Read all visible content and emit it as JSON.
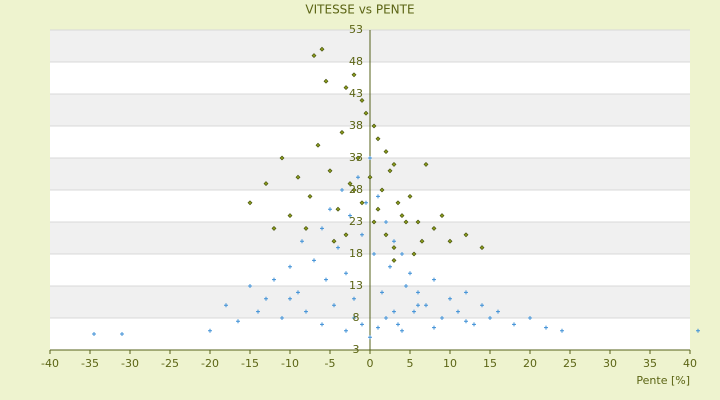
{
  "chart_data": {
    "type": "scatter",
    "title": "VITESSE vs PENTE",
    "x_label": "Pente [%]",
    "xlim": [
      -40,
      40
    ],
    "xticks": [
      -40,
      -35,
      -30,
      -25,
      -20,
      -15,
      -10,
      -5,
      0,
      5,
      10,
      15,
      20,
      25,
      30,
      35,
      40
    ],
    "ylim": [
      3,
      53
    ],
    "yticks": [
      3,
      8,
      13,
      18,
      23,
      28,
      33,
      38,
      43,
      48,
      53
    ],
    "grid": true,
    "series": [
      {
        "color": "#3d8fd6",
        "marker": "plus",
        "x": [
          -34.5,
          -31,
          -20,
          -18,
          -16.5,
          -15,
          -14,
          -13,
          -12,
          -11,
          -10,
          -9,
          -8.5,
          -8,
          -7,
          -6,
          -5.5,
          -5,
          -4.5,
          -4,
          -3.5,
          -3,
          -2.5,
          -2,
          -1.5,
          -1,
          -0.5,
          0,
          0.5,
          1,
          1.5,
          2,
          2.5,
          3,
          3.5,
          4,
          4.5,
          5,
          5.5,
          6,
          7,
          8,
          9,
          10,
          11,
          12,
          13,
          14,
          15,
          16,
          18,
          20,
          22,
          24,
          41,
          -3,
          -1,
          1,
          2,
          0,
          -2,
          3,
          4,
          -6,
          6,
          8,
          -10,
          12
        ],
        "values": [
          5.5,
          5.5,
          6,
          10,
          7.5,
          13,
          9,
          11,
          14,
          8,
          16,
          12,
          20,
          9,
          17,
          22,
          14,
          25,
          10,
          19,
          28,
          15,
          24,
          8,
          30,
          21,
          26,
          33,
          18,
          27,
          12,
          23,
          16,
          20,
          7,
          18,
          13,
          15,
          9,
          12,
          10,
          14,
          8,
          11,
          9,
          12,
          7,
          10,
          8,
          9,
          7,
          8,
          6.5,
          6,
          6,
          6,
          7,
          6.5,
          8,
          5,
          11,
          9,
          6,
          7,
          10,
          6.5,
          11,
          7.5
        ]
      },
      {
        "color": "#8a9a1c",
        "marker": "diamond",
        "x": [
          -7,
          -6,
          -5.5,
          -3,
          -2,
          -1,
          -0.5,
          0.5,
          1,
          2,
          3,
          -15,
          -13,
          -11,
          -10,
          -9,
          -8,
          -7.5,
          -6.5,
          -5,
          -4,
          -3.5,
          -2.5,
          -1.5,
          0,
          1.5,
          2.5,
          3.5,
          4,
          5,
          6,
          7,
          8,
          9,
          10,
          12,
          14,
          -12,
          -4.5,
          -1,
          0.5,
          2,
          3,
          4.5,
          5.5,
          6.5,
          -2,
          1,
          3,
          -3
        ],
        "values": [
          49,
          50,
          45,
          44,
          46,
          42,
          40,
          38,
          36,
          34,
          32,
          26,
          29,
          33,
          24,
          30,
          22,
          27,
          35,
          31,
          25,
          37,
          29,
          33,
          30,
          28,
          31,
          26,
          24,
          27,
          23,
          32,
          22,
          24,
          20,
          21,
          19,
          22,
          20,
          26,
          23,
          21,
          19,
          23,
          18,
          20,
          28,
          25,
          17,
          21
        ]
      }
    ]
  }
}
